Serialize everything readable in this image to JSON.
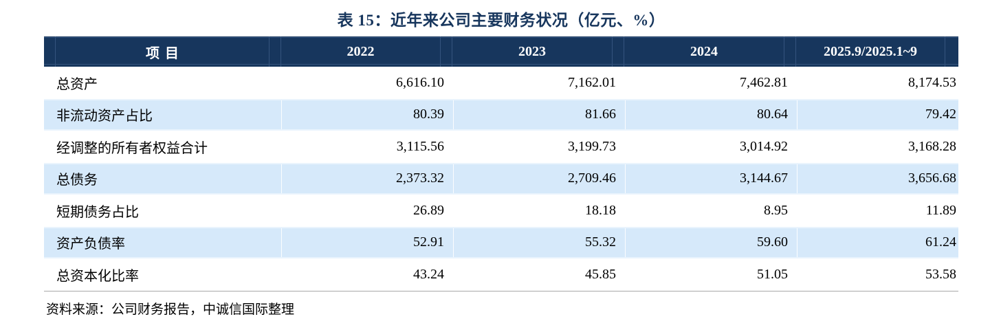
{
  "title": "表 15：近年来公司主要财务状况（亿元、%）",
  "table": {
    "columns": [
      "项目",
      "2022",
      "2023",
      "2024",
      "2025.9/2025.1~9"
    ],
    "rows": [
      {
        "label": "总资产",
        "values": [
          "6,616.10",
          "7,162.01",
          "7,462.81",
          "8,174.53"
        ]
      },
      {
        "label": "非流动资产占比",
        "values": [
          "80.39",
          "81.66",
          "80.64",
          "79.42"
        ]
      },
      {
        "label": "经调整的所有者权益合计",
        "values": [
          "3,115.56",
          "3,199.73",
          "3,014.92",
          "3,168.28"
        ]
      },
      {
        "label": "总债务",
        "values": [
          "2,373.32",
          "2,709.46",
          "3,144.67",
          "3,656.68"
        ]
      },
      {
        "label": "短期债务占比",
        "values": [
          "26.89",
          "18.18",
          "8.95",
          "11.89"
        ]
      },
      {
        "label": "资产负债率",
        "values": [
          "52.91",
          "55.32",
          "59.60",
          "61.24"
        ]
      },
      {
        "label": "总资本化比率",
        "values": [
          "43.24",
          "45.85",
          "51.05",
          "53.58"
        ]
      }
    ]
  },
  "source_note": "资料来源：公司财务报告，中诚信国际整理",
  "colors": {
    "header_bg": "#17365D",
    "header_line": "#35547E",
    "alt_row_bg": "#D6E9FA",
    "title_text": "#17365D",
    "rule": "#A8A8A8"
  }
}
